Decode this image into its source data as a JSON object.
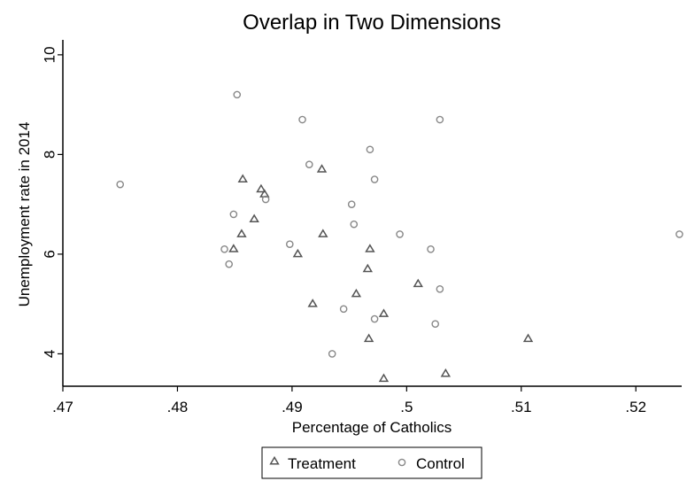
{
  "chart_data": {
    "type": "scatter",
    "title": "Overlap in Two Dimensions",
    "xlabel": "Percentage of Catholics",
    "ylabel": "Unemployment rate in 2014",
    "xlim": [
      0.47,
      0.524
    ],
    "ylim": [
      3.35,
      10.3
    ],
    "x_ticks": [
      0.47,
      0.48,
      0.49,
      0.5,
      0.51,
      0.52
    ],
    "x_tick_labels": [
      ".47",
      ".48",
      ".49",
      ".5",
      ".51",
      ".52"
    ],
    "y_ticks": [
      4,
      6,
      8,
      10
    ],
    "y_tick_labels": [
      "4",
      "6",
      "8",
      "10"
    ],
    "grid": false,
    "legend_position": "bottom",
    "series": [
      {
        "name": "Treatment",
        "marker": "triangle",
        "color": "#555555",
        "points": [
          [
            0.4857,
            7.5
          ],
          [
            0.4873,
            7.3
          ],
          [
            0.4926,
            7.7
          ],
          [
            0.4876,
            7.2
          ],
          [
            0.4867,
            6.7
          ],
          [
            0.4856,
            6.4
          ],
          [
            0.4849,
            6.1
          ],
          [
            0.4927,
            6.4
          ],
          [
            0.4905,
            6.0
          ],
          [
            0.4968,
            6.1
          ],
          [
            0.4966,
            5.7
          ],
          [
            0.4956,
            5.2
          ],
          [
            0.501,
            5.4
          ],
          [
            0.4918,
            5.0
          ],
          [
            0.498,
            4.8
          ],
          [
            0.4967,
            4.3
          ],
          [
            0.5106,
            4.3
          ],
          [
            0.498,
            3.5
          ],
          [
            0.5034,
            3.6
          ]
        ]
      },
      {
        "name": "Control",
        "marker": "circle",
        "color": "#888888",
        "points": [
          [
            0.4852,
            9.2
          ],
          [
            0.4909,
            8.7
          ],
          [
            0.5029,
            8.7
          ],
          [
            0.4968,
            8.1
          ],
          [
            0.475,
            7.4
          ],
          [
            0.4915,
            7.8
          ],
          [
            0.4972,
            7.5
          ],
          [
            0.4952,
            7.0
          ],
          [
            0.4877,
            7.1
          ],
          [
            0.4849,
            6.8
          ],
          [
            0.4954,
            6.6
          ],
          [
            0.4994,
            6.4
          ],
          [
            0.5238,
            6.4
          ],
          [
            0.4898,
            6.2
          ],
          [
            0.5021,
            6.1
          ],
          [
            0.4841,
            6.1
          ],
          [
            0.4845,
            5.8
          ],
          [
            0.5029,
            5.3
          ],
          [
            0.4945,
            4.9
          ],
          [
            0.4972,
            4.7
          ],
          [
            0.5025,
            4.6
          ],
          [
            0.4935,
            4.0
          ]
        ]
      }
    ]
  }
}
